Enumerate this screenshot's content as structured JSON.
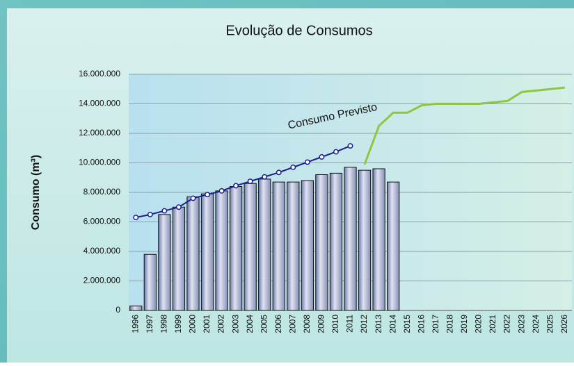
{
  "chart_data": {
    "type": "bar",
    "title": "Evolução de Consumos",
    "y_label": "Consumo (m³)",
    "categories": [
      "1996",
      "1997",
      "1998",
      "1999",
      "2000",
      "2001",
      "2002",
      "2003",
      "2004",
      "2005",
      "2006",
      "2007",
      "2008",
      "2009",
      "2010",
      "2011",
      "2012",
      "2013",
      "2014",
      "2015",
      "2016",
      "2017",
      "2018",
      "2019",
      "2020",
      "2021",
      "2022",
      "2023",
      "2024",
      "2025",
      "2026"
    ],
    "series": [
      {
        "type": "bar",
        "color": "#9aa3c6",
        "values": [
          300000,
          3800000,
          6500000,
          7000000,
          7700000,
          7900000,
          8100000,
          8400000,
          8600000,
          8900000,
          8700000,
          8700000,
          8800000,
          9200000,
          9300000,
          9700000,
          9500000,
          9600000,
          8700000,
          null,
          null,
          null,
          null,
          null,
          null,
          null,
          null,
          null,
          null,
          null,
          null
        ]
      },
      {
        "type": "line",
        "name": "Consumo Previsto",
        "color": "#1a1f8c",
        "values": [
          6300000,
          6500000,
          6750000,
          7000000,
          7600000,
          7850000,
          8100000,
          8450000,
          8750000,
          9050000,
          9350000,
          9700000,
          10050000,
          10400000,
          10750000,
          11150000,
          null,
          null,
          null,
          null,
          null,
          null,
          null,
          null,
          null,
          null,
          null,
          null,
          null,
          null,
          null
        ]
      },
      {
        "type": "line",
        "color": "#8dc63f",
        "values": [
          null,
          null,
          null,
          null,
          null,
          null,
          null,
          null,
          null,
          null,
          null,
          null,
          null,
          null,
          null,
          null,
          9900000,
          12500000,
          13400000,
          13400000,
          13900000,
          14000000,
          14000000,
          14000000,
          14000000,
          14100000,
          14200000,
          14800000,
          14900000,
          15000000,
          15100000
        ]
      }
    ],
    "ylim": [
      0,
      16000000
    ],
    "yticks": [
      0,
      {
        "value": 2000000,
        "label": "2.000.000"
      },
      {
        "value": 4000000,
        "label": "4.000.000"
      },
      {
        "value": 6000000,
        "label": "6.000.000"
      },
      {
        "value": 8000000,
        "label": "8.000.000"
      },
      {
        "value": 10000000,
        "label": "10.000.000"
      },
      {
        "value": 12000000,
        "label": "12.000.000"
      },
      {
        "value": 14000000,
        "label": "14.000.000"
      },
      {
        "value": 16000000,
        "label": "16.000.000"
      }
    ],
    "grid": true
  }
}
